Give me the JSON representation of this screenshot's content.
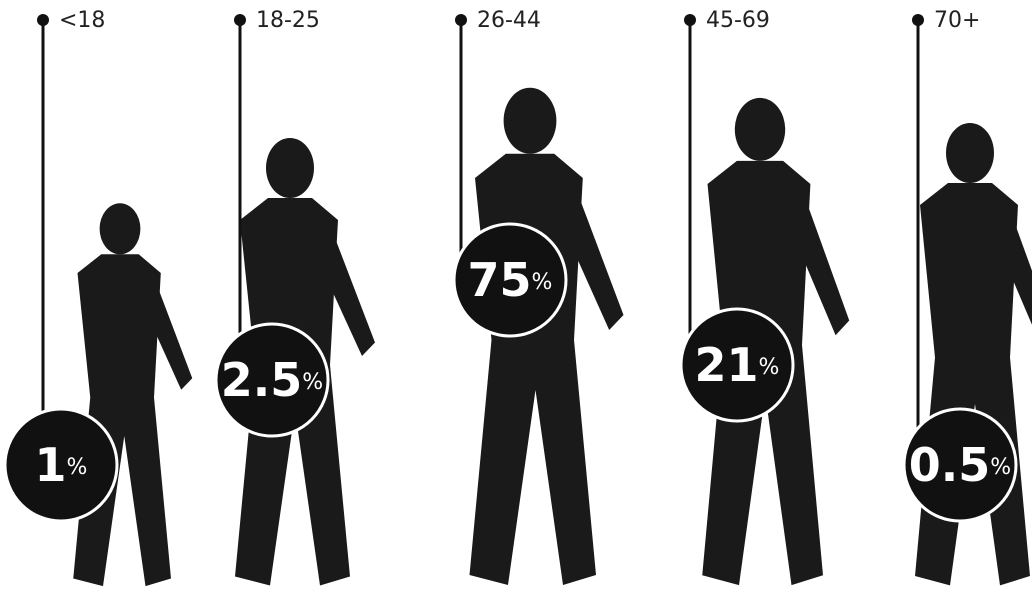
{
  "chart_data": {
    "type": "pictogram",
    "categories": [
      "<18",
      "18-25",
      "26-44",
      "45-69",
      "70+"
    ],
    "values": [
      1,
      2.5,
      75,
      21,
      0.5
    ],
    "unit": "%",
    "color": "#111111"
  }
}
